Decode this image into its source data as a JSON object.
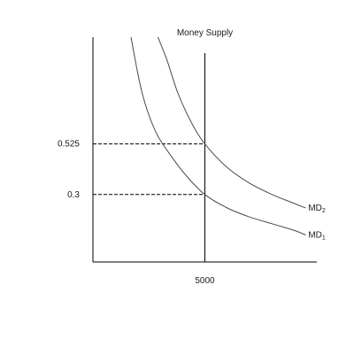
{
  "chart_data": {
    "type": "line",
    "title": "",
    "xlabel": "",
    "ylabel": "",
    "xlim": [
      0,
      10000
    ],
    "ylim": [
      0,
      1
    ],
    "grid": false,
    "x_ticks": [
      5000
    ],
    "x_tick_labels": [
      "5000"
    ],
    "y_ticks": [
      0.3,
      0.525
    ],
    "y_tick_labels": [
      "0.3",
      "0.525"
    ],
    "vertical_line": {
      "label": "Money Supply",
      "x": 5000
    },
    "series": [
      {
        "name": "MD",
        "subscript": "1",
        "x": [
          1700,
          2200,
          2800,
          3500,
          4200,
          5000,
          6000,
          7000,
          8000,
          9000,
          9500
        ],
        "y": [
          1.0,
          0.75,
          0.58,
          0.47,
          0.38,
          0.3,
          0.24,
          0.2,
          0.17,
          0.14,
          0.12
        ]
      },
      {
        "name": "MD",
        "subscript": "2",
        "x": [
          2900,
          3300,
          3800,
          4400,
          5000,
          6000,
          7000,
          8000,
          9000,
          9500
        ],
        "y": [
          1.0,
          0.9,
          0.75,
          0.62,
          0.525,
          0.42,
          0.35,
          0.3,
          0.26,
          0.24
        ]
      }
    ],
    "reference_points": [
      {
        "x": 5000,
        "y": 0.525
      },
      {
        "x": 5000,
        "y": 0.3
      }
    ]
  }
}
